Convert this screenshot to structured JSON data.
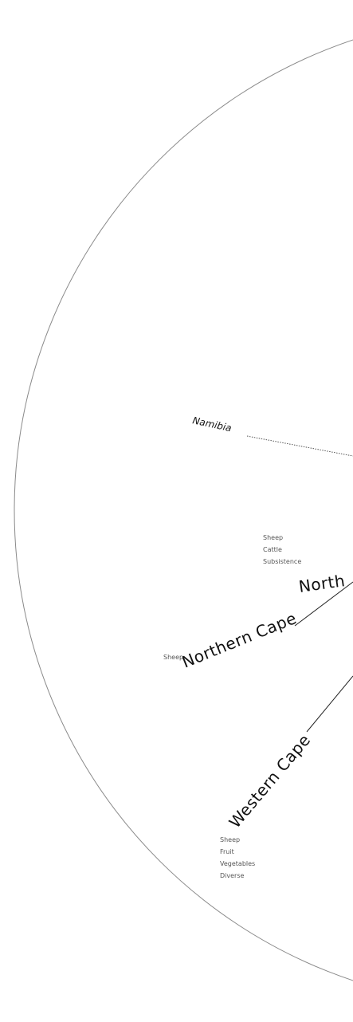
{
  "diagram": {
    "regions": [
      {
        "id": "namibia",
        "label": "Namibia",
        "notes": []
      },
      {
        "id": "north-west",
        "label": "North",
        "notes": [
          "Sheep",
          "Cattle",
          "Subsistence"
        ]
      },
      {
        "id": "northern-cape",
        "label": "Northern Cape",
        "notes": [
          "Sheep"
        ]
      },
      {
        "id": "western-cape",
        "label": "Western Cape",
        "notes": [
          "Sheep",
          "Fruit",
          "Vegetables",
          "Diverse"
        ]
      }
    ]
  }
}
